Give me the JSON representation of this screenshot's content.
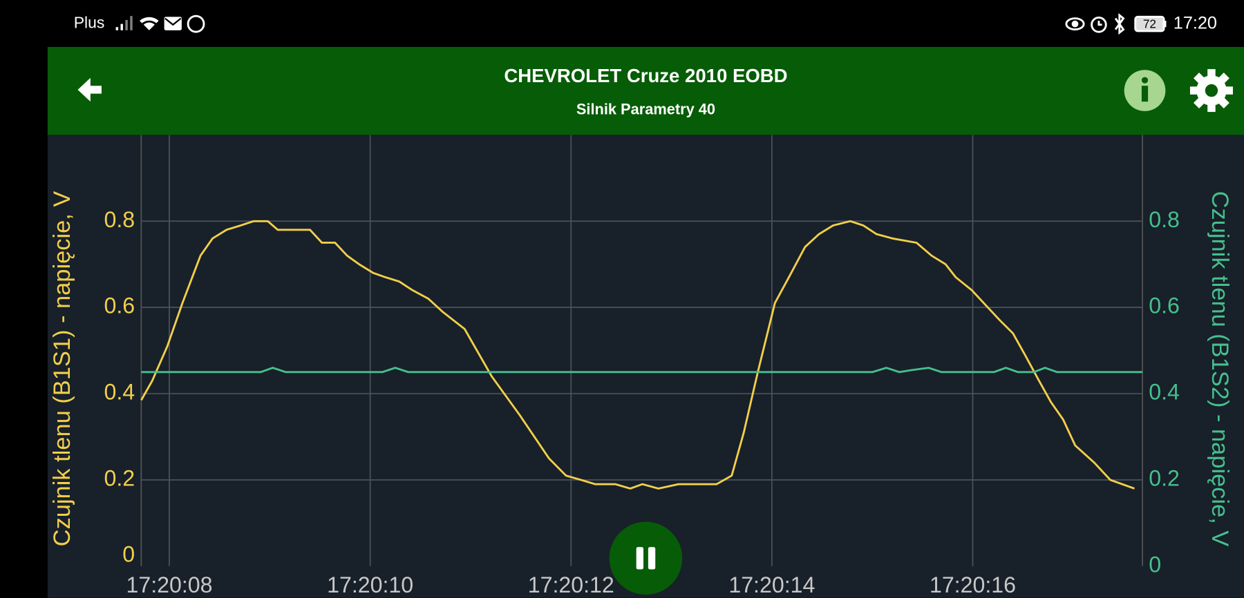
{
  "status_bar": {
    "carrier": "Plus",
    "battery": "72",
    "time": "17:20"
  },
  "header": {
    "title": "CHEVROLET Cruze 2010 EOBD",
    "subtitle": "Silnik Parametry 40"
  },
  "chart_data": {
    "type": "line",
    "ylabel": "Czujnik tlenu (B1S1) - napięcie, V",
    "y2label": "Czujnik tlenu (B1S2) - napięcie, V",
    "xlim": [
      7.72,
      17.69
    ],
    "xticks": [
      {
        "value": 8,
        "label": "17:20:08"
      },
      {
        "value": 10,
        "label": "17:20:10"
      },
      {
        "value": 12,
        "label": "17:20:12"
      },
      {
        "value": 14,
        "label": "17:20:14"
      },
      {
        "value": 16,
        "label": "17:20:16"
      }
    ],
    "ylim": [
      0,
      1
    ],
    "yticks": [
      0,
      0.2,
      0.4,
      0.6,
      0.8
    ],
    "y2lim": [
      0,
      1
    ],
    "y2ticks": [
      0,
      0.2,
      0.4,
      0.6,
      0.8
    ],
    "grid": true,
    "series": [
      {
        "color": "#f2cf4a",
        "x": [
          7.72,
          7.83,
          7.98,
          8.13,
          8.31,
          8.43,
          8.57,
          8.71,
          8.84,
          8.98,
          9.08,
          9.4,
          9.52,
          9.65,
          9.77,
          9.89,
          10.03,
          10.15,
          10.29,
          10.42,
          10.58,
          10.72,
          10.94,
          11.21,
          11.49,
          11.78,
          11.95,
          12.1,
          12.24,
          12.44,
          12.59,
          12.71,
          12.87,
          13.07,
          13.45,
          13.6,
          13.72,
          13.86,
          14.03,
          14.17,
          14.33,
          14.47,
          14.61,
          14.78,
          14.91,
          15.04,
          15.2,
          15.44,
          15.59,
          15.73,
          15.83,
          15.99,
          16.15,
          16.27,
          16.4,
          16.52,
          16.66,
          16.78,
          16.9,
          17.02,
          17.21,
          17.37,
          17.61
        ],
        "values": [
          0.385,
          0.43,
          0.51,
          0.61,
          0.72,
          0.76,
          0.78,
          0.79,
          0.8,
          0.8,
          0.78,
          0.78,
          0.75,
          0.75,
          0.72,
          0.7,
          0.68,
          0.67,
          0.66,
          0.64,
          0.62,
          0.59,
          0.55,
          0.44,
          0.35,
          0.25,
          0.21,
          0.2,
          0.19,
          0.19,
          0.18,
          0.19,
          0.18,
          0.19,
          0.19,
          0.21,
          0.31,
          0.45,
          0.61,
          0.67,
          0.74,
          0.77,
          0.79,
          0.8,
          0.79,
          0.77,
          0.76,
          0.75,
          0.72,
          0.7,
          0.67,
          0.64,
          0.6,
          0.57,
          0.54,
          0.49,
          0.43,
          0.38,
          0.34,
          0.28,
          0.24,
          0.2,
          0.18
        ]
      },
      {
        "color": "#45c08c",
        "axis": "y2",
        "x": [
          7.72,
          8.91,
          9.03,
          9.16,
          10.12,
          10.25,
          10.38,
          15.0,
          15.14,
          15.27,
          15.4,
          15.56,
          15.69,
          16.21,
          16.33,
          16.45,
          16.61,
          16.72,
          16.84,
          17.69
        ],
        "values": [
          0.45,
          0.45,
          0.46,
          0.45,
          0.45,
          0.46,
          0.45,
          0.45,
          0.46,
          0.45,
          0.455,
          0.46,
          0.45,
          0.45,
          0.46,
          0.45,
          0.45,
          0.46,
          0.45,
          0.45
        ]
      }
    ]
  }
}
